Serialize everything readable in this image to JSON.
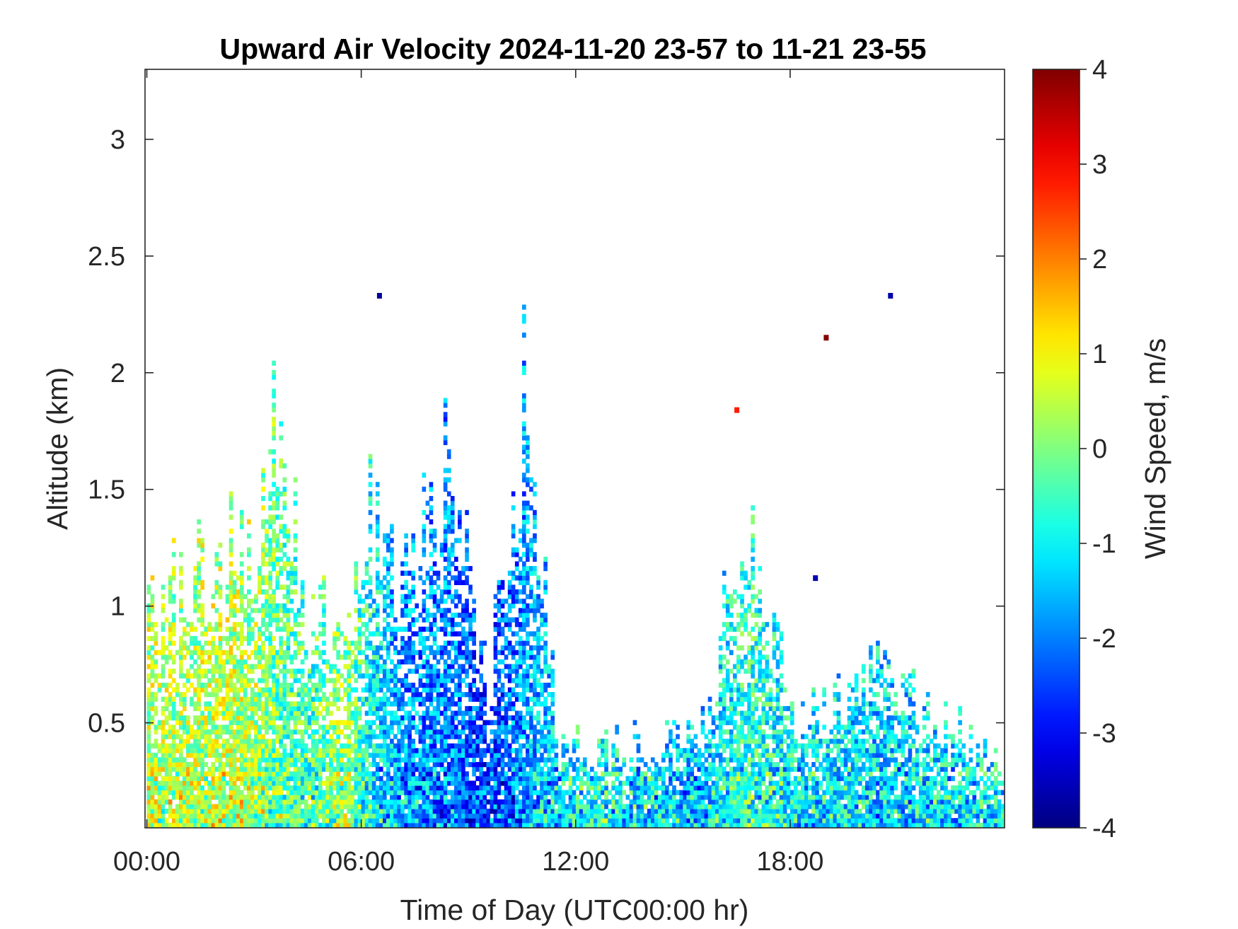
{
  "chart_data": {
    "type": "heatmap",
    "title": "Upward Air Velocity 2024-11-20 23-57 to 11-21 23-55",
    "xlabel": "Time of Day (UTC00:00 hr)",
    "ylabel": "Altitude (km)",
    "colorbar_label": "Wind Speed, m/s",
    "x_unit": "hours",
    "xlim": [
      -0.05,
      24
    ],
    "x_ticks": [
      0,
      6,
      12,
      18
    ],
    "x_tick_labels": [
      "00:00",
      "06:00",
      "12:00",
      "18:00"
    ],
    "ylim": [
      0.05,
      3.3
    ],
    "y_ticks": [
      0.5,
      1,
      1.5,
      2,
      2.5,
      3
    ],
    "y_tick_labels": [
      "0.5",
      "1",
      "1.5",
      "2",
      "2.5",
      "3"
    ],
    "clim": [
      -4,
      4
    ],
    "colorbar_ticks": [
      -4,
      -3,
      -2,
      -1,
      0,
      1,
      2,
      3,
      4
    ],
    "colorbar_tick_labels": [
      "-4",
      "-3",
      "-2",
      "-1",
      "0",
      "1",
      "2",
      "3",
      "4"
    ],
    "colormap": "jet",
    "grid": false,
    "time_step_hours": 0.1,
    "altitude_step_km": 0.02,
    "echo_top_profile": [
      {
        "x": 0.0,
        "top_km": 1.0,
        "mean": 0.4
      },
      {
        "x": 1.0,
        "top_km": 1.1,
        "mean": 0.3
      },
      {
        "x": 2.0,
        "top_km": 1.2,
        "mean": 0.5
      },
      {
        "x": 3.0,
        "top_km": 1.2,
        "mean": 0.3
      },
      {
        "x": 3.6,
        "top_km": 1.8,
        "mean": -0.2
      },
      {
        "x": 4.5,
        "top_km": 1.0,
        "mean": -0.5
      },
      {
        "x": 5.5,
        "top_km": 0.8,
        "mean": 0.2
      },
      {
        "x": 6.2,
        "top_km": 1.4,
        "mean": -0.9
      },
      {
        "x": 7.0,
        "top_km": 1.0,
        "mean": -1.8
      },
      {
        "x": 8.5,
        "top_km": 1.6,
        "mean": -2.0
      },
      {
        "x": 9.5,
        "top_km": 0.6,
        "mean": -2.6
      },
      {
        "x": 10.5,
        "top_km": 1.9,
        "mean": -1.8
      },
      {
        "x": 11.5,
        "top_km": 0.4,
        "mean": -1.2
      },
      {
        "x": 12.5,
        "top_km": 0.4,
        "mean": -0.8
      },
      {
        "x": 13.5,
        "top_km": 0.4,
        "mean": -1.2
      },
      {
        "x": 15.5,
        "top_km": 0.5,
        "mean": -1.4
      },
      {
        "x": 16.8,
        "top_km": 1.4,
        "mean": -0.6
      },
      {
        "x": 18.0,
        "top_km": 0.5,
        "mean": -1.0
      },
      {
        "x": 20.5,
        "top_km": 0.7,
        "mean": -1.3
      },
      {
        "x": 24.0,
        "top_km": 0.3,
        "mean": -1.0
      }
    ],
    "isolated_points": [
      {
        "x": 6.5,
        "y": 2.33,
        "value": -3.8
      },
      {
        "x": 16.5,
        "y": 1.84,
        "value": 2.8
      },
      {
        "x": 18.7,
        "y": 1.12,
        "value": -3.6
      },
      {
        "x": 19.0,
        "y": 2.15,
        "value": 4.0
      },
      {
        "x": 20.8,
        "y": 2.33,
        "value": -3.7
      }
    ]
  }
}
